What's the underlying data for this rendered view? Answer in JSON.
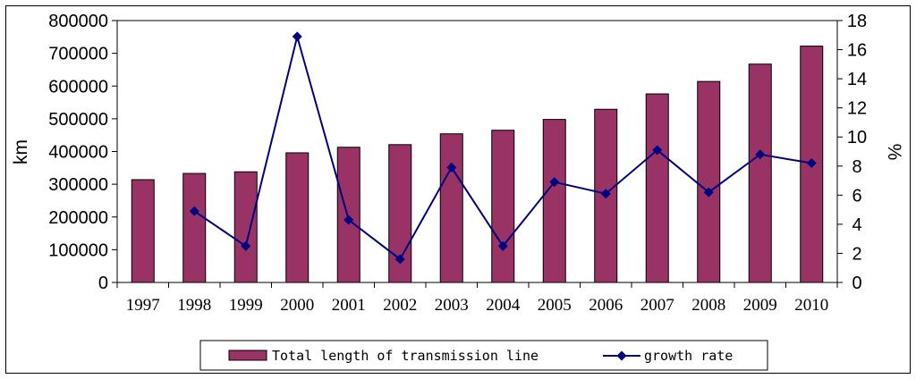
{
  "chart_data": {
    "type": "bar+line",
    "title": "",
    "categories": [
      "1997",
      "1998",
      "1999",
      "2000",
      "2001",
      "2002",
      "2003",
      "2004",
      "2005",
      "2006",
      "2007",
      "2008",
      "2009",
      "2010"
    ],
    "series": [
      {
        "name": "Total length of transmission line",
        "type": "bar",
        "axis": "left",
        "color": "#993366",
        "values": [
          314000,
          333000,
          338000,
          396000,
          413000,
          421000,
          454000,
          465000,
          498000,
          529000,
          576000,
          614000,
          667000,
          722000
        ]
      },
      {
        "name": "growth rate",
        "type": "line",
        "axis": "right",
        "color": "#000080",
        "values": [
          null,
          4.9,
          2.5,
          16.9,
          4.3,
          1.6,
          7.9,
          2.5,
          6.9,
          6.1,
          9.1,
          6.2,
          8.8,
          8.2
        ]
      }
    ],
    "y_left": {
      "label": "km",
      "min": 0,
      "max": 800000,
      "ticks": [
        0,
        100000,
        200000,
        300000,
        400000,
        500000,
        600000,
        700000,
        800000
      ]
    },
    "y_right": {
      "label": "%",
      "min": 0,
      "max": 18,
      "ticks": [
        0,
        2,
        4,
        6,
        8,
        10,
        12,
        14,
        16,
        18
      ]
    },
    "grid": false,
    "legend": "bottom"
  }
}
